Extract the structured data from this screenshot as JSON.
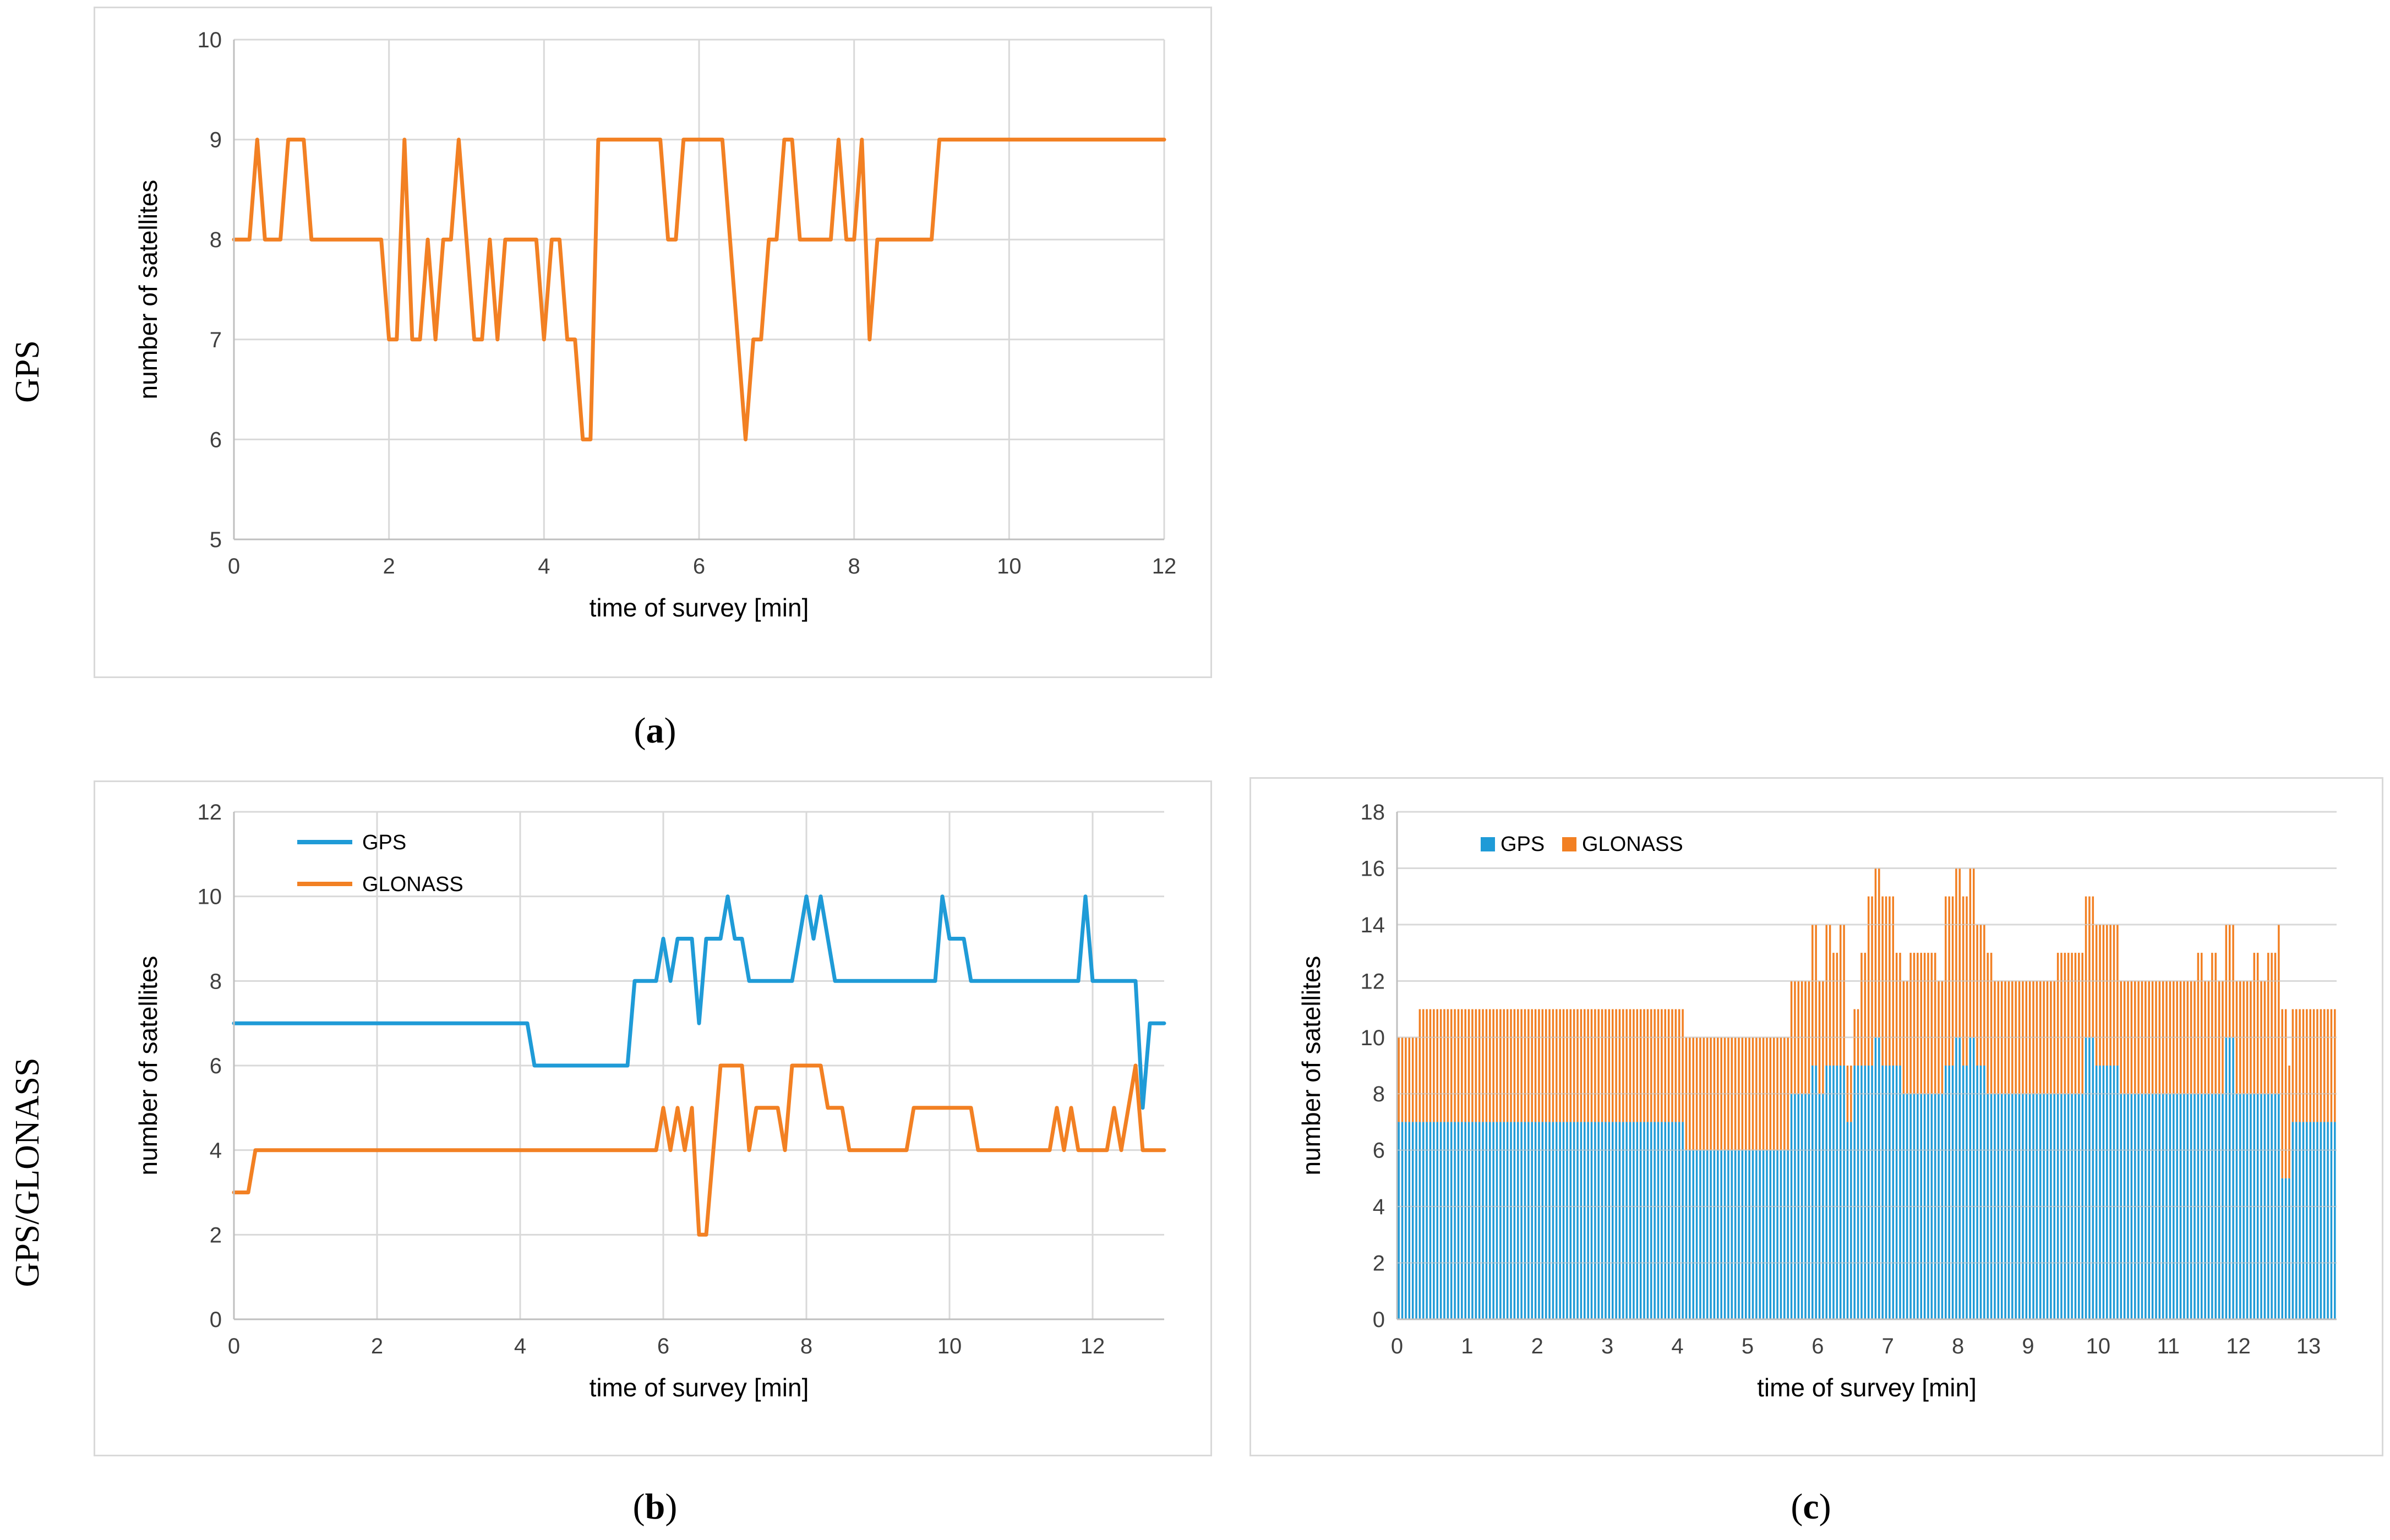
{
  "row_labels": {
    "top": "GPS",
    "bottom": "GPS/GLONASS"
  },
  "captions": {
    "a": {
      "open": "(",
      "letter": "a",
      "close": ")"
    },
    "b": {
      "open": "(",
      "letter": "b",
      "close": ")"
    },
    "c": {
      "open": "(",
      "letter": "c",
      "close": ")"
    }
  },
  "colors": {
    "gps": "#1f9bd7",
    "glonass": "#f28023",
    "grid": "#d9d9d9",
    "axis": "#bfbfbf"
  },
  "chart_data": [
    {
      "id": "a",
      "type": "line",
      "xlabel": "time of survey [min]",
      "ylabel": "number of satellites",
      "xlim": [
        0,
        12
      ],
      "ylim": [
        5,
        10
      ],
      "x_ticks": [
        "0",
        "2",
        "4",
        "6",
        "8",
        "10",
        "12"
      ],
      "y_ticks": [
        "5",
        "6",
        "7",
        "8",
        "9",
        "10"
      ],
      "series": [
        {
          "name": "GPS",
          "color": "#f28023",
          "points": [
            [
              0,
              8
            ],
            [
              0.15,
              8
            ],
            [
              0.2,
              8
            ],
            [
              0.3,
              9
            ],
            [
              0.4,
              8
            ],
            [
              0.5,
              8
            ],
            [
              0.6,
              8
            ],
            [
              0.7,
              9
            ],
            [
              0.8,
              9
            ],
            [
              0.9,
              9
            ],
            [
              1.0,
              8
            ],
            [
              1.2,
              8
            ],
            [
              1.9,
              8
            ],
            [
              2.0,
              7
            ],
            [
              2.1,
              7
            ],
            [
              2.2,
              9
            ],
            [
              2.3,
              7
            ],
            [
              2.4,
              7
            ],
            [
              2.5,
              8
            ],
            [
              2.6,
              7
            ],
            [
              2.7,
              8
            ],
            [
              2.8,
              8
            ],
            [
              2.9,
              9
            ],
            [
              3.0,
              8
            ],
            [
              3.1,
              7
            ],
            [
              3.2,
              7
            ],
            [
              3.3,
              8
            ],
            [
              3.4,
              7
            ],
            [
              3.5,
              8
            ],
            [
              3.7,
              8
            ],
            [
              3.9,
              8
            ],
            [
              4.0,
              7
            ],
            [
              4.1,
              8
            ],
            [
              4.2,
              8
            ],
            [
              4.3,
              7
            ],
            [
              4.4,
              7
            ],
            [
              4.5,
              6
            ],
            [
              4.6,
              6
            ],
            [
              4.7,
              9
            ],
            [
              5.5,
              9
            ],
            [
              5.6,
              8
            ],
            [
              5.7,
              8
            ],
            [
              5.8,
              9
            ],
            [
              6.3,
              9
            ],
            [
              6.4,
              8
            ],
            [
              6.5,
              7
            ],
            [
              6.6,
              6
            ],
            [
              6.7,
              7
            ],
            [
              6.8,
              7
            ],
            [
              6.9,
              8
            ],
            [
              7.0,
              8
            ],
            [
              7.1,
              9
            ],
            [
              7.2,
              9
            ],
            [
              7.3,
              8
            ],
            [
              7.7,
              8
            ],
            [
              7.8,
              9
            ],
            [
              7.9,
              8
            ],
            [
              8.0,
              8
            ],
            [
              8.1,
              9
            ],
            [
              8.2,
              7
            ],
            [
              8.3,
              8
            ],
            [
              8.5,
              8
            ],
            [
              9.0,
              8
            ],
            [
              9.1,
              9
            ],
            [
              12.0,
              9
            ]
          ]
        }
      ]
    },
    {
      "id": "b",
      "type": "line",
      "xlabel": "time of survey [min]",
      "ylabel": "number of satellites",
      "xlim": [
        0,
        13
      ],
      "ylim": [
        0,
        12
      ],
      "x_ticks": [
        "0",
        "2",
        "4",
        "6",
        "8",
        "10",
        "12"
      ],
      "y_ticks": [
        "0",
        "2",
        "4",
        "6",
        "8",
        "10",
        "12"
      ],
      "legend": [
        "GPS",
        "GLONASS"
      ],
      "series": [
        {
          "name": "GPS",
          "color": "#1f9bd7",
          "points": [
            [
              0,
              7
            ],
            [
              4.0,
              7
            ],
            [
              4.1,
              7
            ],
            [
              4.2,
              6
            ],
            [
              5.5,
              6
            ],
            [
              5.6,
              8
            ],
            [
              5.9,
              8
            ],
            [
              6.0,
              9
            ],
            [
              6.1,
              8
            ],
            [
              6.2,
              9
            ],
            [
              6.4,
              9
            ],
            [
              6.5,
              7
            ],
            [
              6.6,
              9
            ],
            [
              6.8,
              9
            ],
            [
              6.9,
              10
            ],
            [
              7.0,
              9
            ],
            [
              7.1,
              9
            ],
            [
              7.2,
              8
            ],
            [
              7.8,
              8
            ],
            [
              7.9,
              9
            ],
            [
              8.0,
              10
            ],
            [
              8.1,
              9
            ],
            [
              8.2,
              10
            ],
            [
              8.3,
              9
            ],
            [
              8.4,
              8
            ],
            [
              9.8,
              8
            ],
            [
              9.9,
              10
            ],
            [
              10.0,
              9
            ],
            [
              10.2,
              9
            ],
            [
              10.3,
              8
            ],
            [
              11.8,
              8
            ],
            [
              11.9,
              10
            ],
            [
              12.0,
              8
            ],
            [
              12.6,
              8
            ],
            [
              12.7,
              5
            ],
            [
              12.8,
              7
            ],
            [
              13.0,
              7
            ]
          ]
        },
        {
          "name": "GLONASS",
          "color": "#f28023",
          "points": [
            [
              0,
              3
            ],
            [
              0.2,
              3
            ],
            [
              0.3,
              4
            ],
            [
              5.9,
              4
            ],
            [
              6.0,
              5
            ],
            [
              6.1,
              4
            ],
            [
              6.2,
              5
            ],
            [
              6.3,
              4
            ],
            [
              6.4,
              5
            ],
            [
              6.5,
              2
            ],
            [
              6.6,
              2
            ],
            [
              6.7,
              4
            ],
            [
              6.8,
              6
            ],
            [
              7.1,
              6
            ],
            [
              7.2,
              4
            ],
            [
              7.3,
              5
            ],
            [
              7.6,
              5
            ],
            [
              7.7,
              4
            ],
            [
              7.8,
              6
            ],
            [
              8.2,
              6
            ],
            [
              8.3,
              5
            ],
            [
              8.5,
              5
            ],
            [
              8.6,
              4
            ],
            [
              9.4,
              4
            ],
            [
              9.5,
              5
            ],
            [
              10.3,
              5
            ],
            [
              10.4,
              4
            ],
            [
              11.4,
              4
            ],
            [
              11.5,
              5
            ],
            [
              11.6,
              4
            ],
            [
              11.7,
              5
            ],
            [
              11.8,
              4
            ],
            [
              12.2,
              4
            ],
            [
              12.3,
              5
            ],
            [
              12.4,
              4
            ],
            [
              12.5,
              5
            ],
            [
              12.6,
              6
            ],
            [
              12.7,
              4
            ],
            [
              13.0,
              4
            ]
          ]
        }
      ]
    },
    {
      "id": "c",
      "type": "bar",
      "stacked": true,
      "xlabel": "time of survey [min]",
      "ylabel": "number of satellites",
      "xlim": [
        0,
        13.4
      ],
      "ylim": [
        0,
        18
      ],
      "x_ticks": [
        "0",
        "1",
        "2",
        "3",
        "4",
        "5",
        "6",
        "7",
        "8",
        "9",
        "10",
        "11",
        "12",
        "13"
      ],
      "y_ticks": [
        "0",
        "2",
        "4",
        "6",
        "8",
        "10",
        "12",
        "14",
        "16",
        "18"
      ],
      "legend": [
        "GPS",
        "GLONASS"
      ],
      "bar_step_min": 0.05,
      "series": [
        {
          "name": "GPS",
          "color": "#1f9bd7",
          "segments": [
            [
              0,
              4.1,
              7
            ],
            [
              4.1,
              5.6,
              6
            ],
            [
              5.6,
              5.9,
              8
            ],
            [
              5.9,
              6.0,
              9
            ],
            [
              6.0,
              6.1,
              8
            ],
            [
              6.1,
              6.2,
              9
            ],
            [
              6.2,
              6.4,
              9
            ],
            [
              6.4,
              6.5,
              7
            ],
            [
              6.5,
              6.8,
              9
            ],
            [
              6.8,
              6.9,
              10
            ],
            [
              6.9,
              7.2,
              9
            ],
            [
              7.2,
              7.8,
              8
            ],
            [
              7.8,
              7.95,
              9
            ],
            [
              7.95,
              8.05,
              10
            ],
            [
              8.05,
              8.15,
              9
            ],
            [
              8.15,
              8.25,
              10
            ],
            [
              8.25,
              8.4,
              9
            ],
            [
              8.4,
              9.8,
              8
            ],
            [
              9.8,
              9.95,
              10
            ],
            [
              9.95,
              10.3,
              9
            ],
            [
              10.3,
              11.8,
              8
            ],
            [
              11.8,
              11.95,
              10
            ],
            [
              11.95,
              12.6,
              8
            ],
            [
              12.6,
              12.75,
              5
            ],
            [
              12.75,
              13.4,
              7
            ]
          ]
        },
        {
          "name": "GLONASS",
          "color": "#f28023",
          "segments": [
            [
              0,
              0.3,
              3
            ],
            [
              0.3,
              5.9,
              4
            ],
            [
              5.9,
              6.0,
              5
            ],
            [
              6.0,
              6.1,
              4
            ],
            [
              6.1,
              6.2,
              5
            ],
            [
              6.2,
              6.3,
              4
            ],
            [
              6.3,
              6.4,
              5
            ],
            [
              6.4,
              6.6,
              2
            ],
            [
              6.6,
              6.7,
              4
            ],
            [
              6.7,
              7.1,
              6
            ],
            [
              7.1,
              7.3,
              4
            ],
            [
              7.3,
              7.7,
              5
            ],
            [
              7.7,
              7.8,
              4
            ],
            [
              7.8,
              8.25,
              6
            ],
            [
              8.25,
              8.5,
              5
            ],
            [
              8.5,
              9.4,
              4
            ],
            [
              9.4,
              10.3,
              5
            ],
            [
              10.3,
              11.4,
              4
            ],
            [
              11.4,
              11.5,
              5
            ],
            [
              11.5,
              11.6,
              4
            ],
            [
              11.6,
              11.7,
              5
            ],
            [
              11.7,
              12.2,
              4
            ],
            [
              12.2,
              12.3,
              5
            ],
            [
              12.3,
              12.4,
              4
            ],
            [
              12.4,
              12.55,
              5
            ],
            [
              12.55,
              12.7,
              6
            ],
            [
              12.7,
              13.4,
              4
            ]
          ]
        }
      ]
    }
  ]
}
